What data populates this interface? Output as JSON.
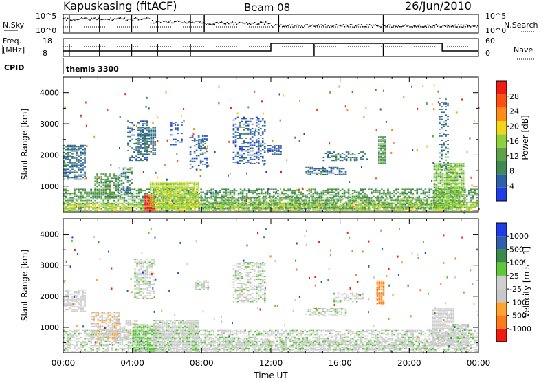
{
  "header": {
    "station": "Kapuskasing (fitACF)",
    "beam": "Beam 08",
    "date": "26/Jun/2010"
  },
  "top_panels": {
    "nsky_label": "N.Sky",
    "nsky_ticks": [
      "10^5",
      "10^0"
    ],
    "nsearch_label": "N.Search",
    "nsearch_ticks": [
      "10^5",
      "10^0"
    ],
    "freq_label_1": "Freq.",
    "freq_label_2": "[MHz]",
    "freq_ticks": [
      "18",
      "8"
    ],
    "nave_label": "Nave",
    "nave_ticks": [
      "60",
      "0"
    ],
    "cpid_label": "CPID",
    "cpid_value": "themis 3300"
  },
  "colors": {
    "power": [
      "#1f3ce6",
      "#2e5fa8",
      "#3f8a52",
      "#5fa14a",
      "#8ed13a",
      "#f0d51a",
      "#ff8c1a",
      "#ff5010",
      "#ee1c12"
    ],
    "velocity": [
      "#ee1c12",
      "#ff7a1a",
      "#ffa32e",
      "#c8c8c8",
      "#cfcfcf",
      "#5ec83a",
      "#3b8a4c",
      "#2e5fa8",
      "#1f3ce6"
    ]
  },
  "chart_data": [
    {
      "type": "heatmap",
      "panel": "power",
      "ylabel": "Slant Range [km]",
      "ylim": [
        180,
        4500
      ],
      "yticks": [
        "1000",
        "2000",
        "3000",
        "4000"
      ],
      "xlim": [
        0,
        24
      ],
      "colorbar_label": "Power [dB]",
      "colorbar_ticks": [
        "4",
        "8",
        "12",
        "16",
        "20",
        "24",
        "28"
      ],
      "color_range": [
        0,
        30
      ],
      "regions": [
        {
          "t0": 0.0,
          "t1": 24.0,
          "r0": 200,
          "r1": 900,
          "v": 10,
          "d": 0.55
        },
        {
          "t0": 0.0,
          "t1": 24.0,
          "r0": 200,
          "r1": 450,
          "v": 16,
          "d": 0.7
        },
        {
          "t0": 4.7,
          "t1": 5.2,
          "r0": 200,
          "r1": 700,
          "v": 28,
          "d": 0.95
        },
        {
          "t0": 5.0,
          "t1": 7.8,
          "r0": 300,
          "r1": 1150,
          "v": 16,
          "d": 0.9
        },
        {
          "t0": 0.0,
          "t1": 1.3,
          "r0": 1200,
          "r1": 2300,
          "v": 6,
          "d": 0.65
        },
        {
          "t0": 1.8,
          "t1": 3.2,
          "r0": 600,
          "r1": 1400,
          "v": 10,
          "d": 0.6
        },
        {
          "t0": 3.2,
          "t1": 4.0,
          "r0": 700,
          "r1": 1600,
          "v": 8,
          "d": 0.5
        },
        {
          "t0": 3.7,
          "t1": 4.9,
          "r0": 1800,
          "r1": 3100,
          "v": 5,
          "d": 0.35
        },
        {
          "t0": 4.3,
          "t1": 5.3,
          "r0": 2000,
          "r1": 2900,
          "v": 6,
          "d": 0.75
        },
        {
          "t0": 6.2,
          "t1": 6.9,
          "r0": 2300,
          "r1": 3100,
          "v": 4,
          "d": 0.3
        },
        {
          "t0": 7.3,
          "t1": 8.3,
          "r0": 1500,
          "r1": 2600,
          "v": 5,
          "d": 0.3
        },
        {
          "t0": 7.8,
          "t1": 8.2,
          "r0": 2200,
          "r1": 2500,
          "v": 6,
          "d": 0.8
        },
        {
          "t0": 9.8,
          "t1": 11.6,
          "r0": 1700,
          "r1": 3200,
          "v": 5,
          "d": 0.4
        },
        {
          "t0": 11.8,
          "t1": 12.6,
          "r0": 2000,
          "r1": 2300,
          "v": 5,
          "d": 0.7
        },
        {
          "t0": 14.0,
          "t1": 16.3,
          "r0": 1350,
          "r1": 1600,
          "v": 6,
          "d": 0.55
        },
        {
          "t0": 15.0,
          "t1": 17.6,
          "r0": 1800,
          "r1": 2100,
          "v": 7,
          "d": 0.45
        },
        {
          "t0": 18.2,
          "t1": 18.6,
          "r0": 1700,
          "r1": 2600,
          "v": 10,
          "d": 0.85
        },
        {
          "t0": 21.4,
          "t1": 23.2,
          "r0": 300,
          "r1": 1700,
          "v": 14,
          "d": 0.85
        },
        {
          "t0": 21.7,
          "t1": 22.3,
          "r0": 1500,
          "r1": 3800,
          "v": 6,
          "d": 0.3
        },
        {
          "t0": 8.0,
          "t1": 21.5,
          "r0": 250,
          "r1": 650,
          "v": 12,
          "d": 0.55
        }
      ]
    },
    {
      "type": "heatmap",
      "panel": "velocity",
      "ylabel": "Slant Range [km]",
      "ylim": [
        180,
        4500
      ],
      "yticks": [
        "1000",
        "2000",
        "3000",
        "4000"
      ],
      "xlim": [
        0,
        24
      ],
      "xticks": [
        "00:00",
        "04:00",
        "08:00",
        "12:00",
        "16:00",
        "20:00",
        "00:00"
      ],
      "xlabel": "Time UT",
      "colorbar_label": "Velocity [m s^-1]",
      "colorbar_ticks": [
        "-1000",
        "-500",
        "-100",
        "-25",
        "25",
        "100",
        "500",
        "1000"
      ],
      "color_range": [
        -1200,
        1200
      ],
      "regions": [
        {
          "t0": 0.0,
          "t1": 24.0,
          "r0": 200,
          "r1": 900,
          "v": 0,
          "d": 0.55
        },
        {
          "t0": 0.0,
          "t1": 1.3,
          "r0": 1500,
          "r1": 2200,
          "v": -150,
          "d": 0.6
        },
        {
          "t0": 1.6,
          "t1": 3.2,
          "r0": 600,
          "r1": 1500,
          "v": -300,
          "d": 0.7
        },
        {
          "t0": 3.0,
          "t1": 4.3,
          "r0": 500,
          "r1": 1200,
          "v": -200,
          "d": 0.5
        },
        {
          "t0": 4.1,
          "t1": 5.3,
          "r0": 1900,
          "r1": 3200,
          "v": 10,
          "d": 0.55
        },
        {
          "t0": 4.0,
          "t1": 5.4,
          "r0": 200,
          "r1": 1100,
          "v": 200,
          "d": 0.85
        },
        {
          "t0": 5.2,
          "t1": 7.8,
          "r0": 200,
          "r1": 1200,
          "v": 0,
          "d": 0.85
        },
        {
          "t0": 7.6,
          "t1": 8.4,
          "r0": 2200,
          "r1": 2500,
          "v": 10,
          "d": 0.6
        },
        {
          "t0": 9.8,
          "t1": 11.6,
          "r0": 1800,
          "r1": 3100,
          "v": 0,
          "d": 0.45
        },
        {
          "t0": 14.0,
          "t1": 16.3,
          "r0": 1350,
          "r1": 1600,
          "v": 0,
          "d": 0.55
        },
        {
          "t0": 15.6,
          "t1": 17.4,
          "r0": 1800,
          "r1": 2100,
          "v": 5,
          "d": 0.5
        },
        {
          "t0": 18.1,
          "t1": 18.5,
          "r0": 1700,
          "r1": 2500,
          "v": -700,
          "d": 0.8
        },
        {
          "t0": 21.3,
          "t1": 22.6,
          "r0": 400,
          "r1": 1600,
          "v": -150,
          "d": 0.85
        },
        {
          "t0": 22.5,
          "t1": 23.4,
          "r0": 300,
          "r1": 1100,
          "v": 0,
          "d": 0.8
        },
        {
          "t0": 8.0,
          "t1": 21.5,
          "r0": 250,
          "r1": 600,
          "v": 0,
          "d": 0.6
        }
      ]
    }
  ]
}
